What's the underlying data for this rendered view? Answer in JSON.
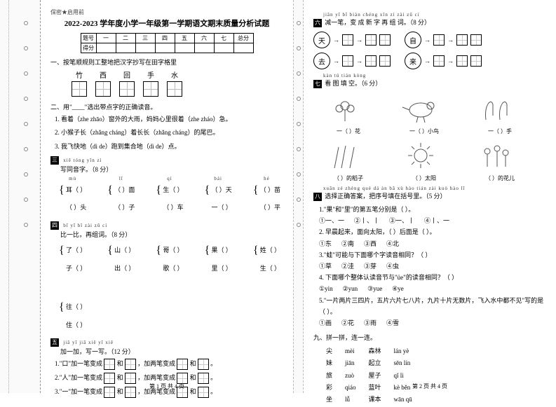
{
  "header_note": "保密★启用前",
  "title": "2022-2023 学年度小学一年级第一学期语文期末质量分析试题",
  "score_headers": [
    "题号",
    "一",
    "二",
    "三",
    "四",
    "五",
    "六",
    "七",
    "总分"
  ],
  "score_row2": "得分",
  "sec1": {
    "label": "一、按笔顺规则工整地把汉字抄写在田字格里",
    "chars": [
      "竹",
      "西",
      "回",
      "手",
      "水"
    ]
  },
  "sec2": {
    "label": "二、用\"____\"选出带点字的正确读音。",
    "items": [
      "1. 看着（zhe  zhāo）窗外的大雨，妈妈心里很着（zhe  zháo）急。",
      "2. 小猴子长（zhǎng  cháng）着长长（zhǎng  cháng）的尾巴。",
      "3. 我飞快地（dì  de）跑到集合地（dì  de）点。"
    ]
  },
  "sec3": {
    "num": "三",
    "pinyin": "xiě tóng yīn zì",
    "label": "写同音字。（8 分）",
    "pairs": [
      {
        "py": "mù",
        "a": "耳（  ）",
        "b": "（  ）头"
      },
      {
        "py": "lǐ",
        "a": "（  ）面",
        "b": "（  ）子"
      },
      {
        "py": "qì",
        "a": "生（  ）",
        "b": "（  ）车"
      },
      {
        "py": "bái",
        "a": "（  ）天",
        "b": "一（  ）"
      },
      {
        "py": "hé",
        "a": "（  ）苗",
        "b": "（  ）平"
      }
    ]
  },
  "sec4": {
    "num": "四",
    "pinyin": "bǐ yī bǐ  zài zǔ cí",
    "label": "比一比，再组词。（8 分）",
    "pairs": [
      [
        "了（  ）",
        "子（  ）"
      ],
      [
        "山（  ）",
        "出（  ）"
      ],
      [
        "哥（  ）",
        "歌（  ）"
      ],
      [
        "果（  ）",
        "里（  ）"
      ],
      [
        "姓（  ）",
        "生（  ）"
      ],
      [
        "往（  ）",
        "住（  ）"
      ]
    ]
  },
  "sec5": {
    "num": "五",
    "pinyin": "jiā yī jiā  xiě yī xiě",
    "label": "加一加，写一写。（12 分）",
    "lines": [
      "1.\"口\"加一笔变成 ▢ 和 ▢ ，加两笔变成 ▢ 和 ▢ 。",
      "2.\"人\"加一笔变成 ▢ 和 ▢ ，加两笔变成 ▢ 和 ▢ 。",
      "3.\"一\"加一笔变成 ▢ 和 ▢ ，加两笔变成 ▢ 和 ▢ 。"
    ]
  },
  "sec6": {
    "num": "六",
    "pinyin": "jiǎn yī bǐ  biàn chéng xīn zì zài zǔ cí",
    "label": "减一笔，变 成 新 字 再 组 词。（8 分）",
    "words": [
      "天",
      "自",
      "去",
      "来"
    ]
  },
  "sec7": {
    "num": "七",
    "pinyin": "kàn tú tián kòng",
    "label": "看 图 填 空。（6 分）",
    "row1": [
      {
        "cap": "一（    ）花"
      },
      {
        "cap": "一（    ）小鸟"
      },
      {
        "cap": "一（    ）手"
      }
    ],
    "row2": [
      {
        "cap": "（    ）的稻子"
      },
      {
        "cap": "（    ）太阳"
      },
      {
        "cap": "（    ）的花儿"
      }
    ]
  },
  "sec8": {
    "num": "八",
    "pinyin": "xuǎn zé zhèng què dá àn  bǎ xù hào tián zài kuò hào lǐ",
    "label": "选择正确答案，把序号填在括号里。（5 分）",
    "q1": {
      "stem": "1.\"果\"和\"里\"的第五笔分别是（  ）。",
      "opts": [
        "①一、一",
        "②丨、丨",
        "③一、丨",
        "④丨、一"
      ]
    },
    "q2": {
      "stem": "2. 早晨起来，面向太阳，（  ）后面是（  ）。",
      "opts": [
        "①东",
        "②南",
        "③西",
        "④北"
      ]
    },
    "q3": {
      "stem": "3.\"蛙\"可能与下面哪个字读音相同？（  ）",
      "opts": [
        "①草",
        "②洼",
        "③芽",
        "④虫"
      ]
    },
    "q4": {
      "stem": "4. 下面哪个整体认读音节与\"üe\"的读音相同？（  ）",
      "opts": [
        "①yin",
        "②yun",
        "③yue",
        "④ye"
      ]
    },
    "q5": {
      "stem": "5.\"一片两片三四片，五片六片七八片，九片十片无数片，飞入水中都不见\"写的是（  ）。",
      "opts": [
        "①画",
        "②花",
        "③雨",
        "④雪"
      ]
    }
  },
  "sec9": {
    "label": "九、拼一拼，连一连。",
    "rows": [
      [
        "尖",
        "mèi",
        "森林",
        "lán yè"
      ],
      [
        "妹",
        "jiān",
        "起立",
        "sēn lín"
      ],
      [
        "旅",
        "zuò",
        "屋子",
        "qǐ lì"
      ],
      [
        "彩",
        "qiáo",
        "蓝叶",
        "kè běn"
      ],
      [
        "坐",
        "lǚ",
        "课本",
        "wān qū"
      ]
    ]
  },
  "footer1": "第 1 页  共 4 页",
  "footer2": "第 2 页  共 4 页"
}
